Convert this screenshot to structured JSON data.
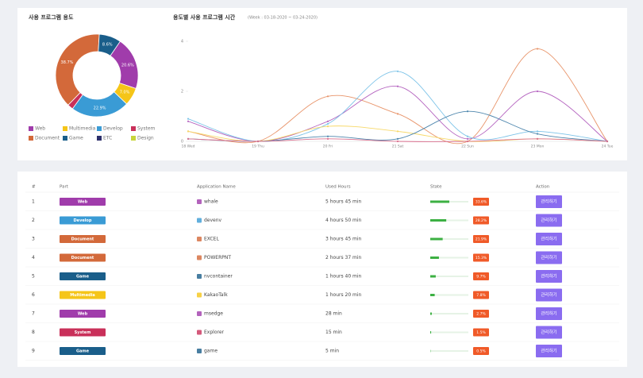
{
  "chart_data": [
    {
      "type": "pie",
      "title": "사용 프로그램 용도",
      "categories": [
        "Web",
        "Multimedia",
        "Develop",
        "System",
        "Document",
        "Game",
        "ETC",
        "Design"
      ],
      "values": [
        20.6,
        7.0,
        22.9,
        2.2,
        38.7,
        8.6,
        0,
        0
      ],
      "value_labels": [
        "20.6%",
        "7.0%",
        "22.9%",
        null,
        "38.7%",
        "8.6%",
        null,
        null
      ],
      "colors": [
        "#a03cab",
        "#f5c518",
        "#3a9bd5",
        "#c9305a",
        "#d3693a",
        "#1a5e8a",
        "#2c2f6b",
        "#c8d43a"
      ]
    },
    {
      "type": "line",
      "title": "용도별 사용 프로그램 시간",
      "subtitle": "(Week : 03-18-2020 ~ 03-24-2020)",
      "categories": [
        "18 Wed",
        "19 Thu",
        "20 Fri",
        "21 Sat",
        "22 Sun",
        "23 Mon",
        "24 Tue"
      ],
      "ylim": [
        0,
        4
      ],
      "yticks": [
        0,
        2,
        4
      ],
      "series": [
        {
          "color": "#e8946a",
          "values": [
            0.4,
            0,
            1.8,
            1.1,
            0,
            3.7,
            0
          ]
        },
        {
          "color": "#b565c0",
          "values": [
            0.8,
            0,
            0.8,
            2.2,
            0.1,
            2.0,
            0
          ]
        },
        {
          "color": "#7cc3e8",
          "values": [
            0.9,
            0,
            0.7,
            2.8,
            0.2,
            0.4,
            0
          ]
        },
        {
          "color": "#f7d96a",
          "values": [
            0.4,
            0,
            0.6,
            0.4,
            0,
            0.1,
            0
          ]
        },
        {
          "color": "#4d86ad",
          "values": [
            0.1,
            0,
            0.2,
            0.1,
            1.2,
            0.3,
            0
          ]
        },
        {
          "color": "#d9708f",
          "values": [
            0.1,
            0,
            0.1,
            0,
            0,
            0.1,
            0
          ]
        }
      ]
    }
  ],
  "table": {
    "headers": [
      "#",
      "Part",
      "Application Name",
      "Used Hours",
      "State",
      "Action"
    ],
    "button": "관리하기",
    "rows": [
      {
        "no": "1",
        "part": "Web",
        "app": "whale",
        "hours": "5 hours 45 min",
        "state": 33.6,
        "state_label": "33.6%"
      },
      {
        "no": "2",
        "part": "Develop",
        "app": "devenv",
        "hours": "4 hours 50 min",
        "state": 28.2,
        "state_label": "28.2%"
      },
      {
        "no": "3",
        "part": "Document",
        "app": "EXCEL",
        "hours": "3 hours 45 min",
        "state": 21.9,
        "state_label": "21.9%"
      },
      {
        "no": "4",
        "part": "Document",
        "app": "POWERPNT",
        "hours": "2 hours 37 min",
        "state": 15.3,
        "state_label": "15.3%"
      },
      {
        "no": "5",
        "part": "Game",
        "app": "nvcontainer",
        "hours": "1 hours 40 min",
        "state": 9.7,
        "state_label": "9.7%"
      },
      {
        "no": "6",
        "part": "Multimedia",
        "app": "KakaoTalk",
        "hours": "1 hours 20 min",
        "state": 7.8,
        "state_label": "7.8%"
      },
      {
        "no": "7",
        "part": "Web",
        "app": "msedge",
        "hours": "28 min",
        "state": 2.7,
        "state_label": "2.7%"
      },
      {
        "no": "8",
        "part": "System",
        "app": "Explorer",
        "hours": "15 min",
        "state": 1.5,
        "state_label": "1.5%"
      },
      {
        "no": "9",
        "part": "Game",
        "app": "game",
        "hours": "5 min",
        "state": 0.5,
        "state_label": "0.5%"
      }
    ]
  }
}
